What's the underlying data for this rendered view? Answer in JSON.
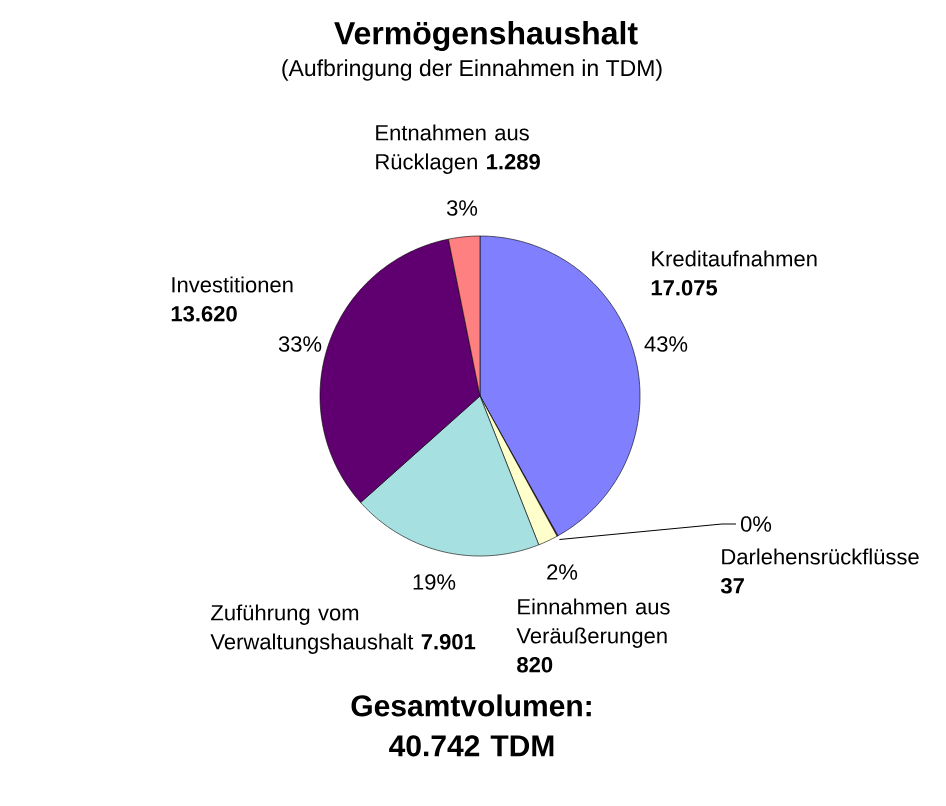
{
  "chart_data": {
    "type": "pie",
    "title": "Vermögenshaushalt",
    "subtitle": "(Aufbringung der Einnahmen in TDM)",
    "categories": [
      "Kreditaufnahmen",
      "Darlehensrückflüsse",
      "Einnahmen aus Veräußerungen",
      "Zuführung vom Verwaltungshaushalt",
      "Investitionen",
      "Entnahmen aus Rücklagen"
    ],
    "values": [
      17075,
      37,
      820,
      7901,
      13620,
      1289
    ],
    "colors": [
      "#8080ff",
      "#803060",
      "#ffffcc",
      "#a6e0e0",
      "#600070",
      "#ff8080"
    ],
    "value_labels": [
      "17.075",
      "37",
      "820",
      "7.901",
      "13.620",
      "1.289"
    ],
    "annotations": [
      "43%",
      "0%",
      "2%",
      "19%",
      "33%",
      "3%",
      "Gesamtvolumen: 40.742 TDM"
    ]
  }
}
